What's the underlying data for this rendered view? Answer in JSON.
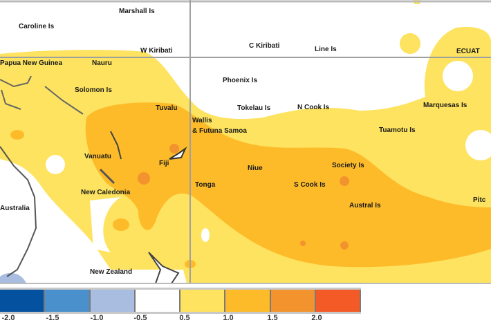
{
  "colors": {
    "background": "#ffffff",
    "yellow_0_5_to_1_0": "#fde35f",
    "orange_1_0_to_1_5": "#fdbb2a",
    "dark_orange_1_5_to_2_0": "#f3932e",
    "red_orange_above_2_0": "#f45a25",
    "light_blue_minus_1_0_to_minus_0_5": "#a8bde0",
    "grid": "#a0a0a0"
  },
  "places": {
    "marshall": "Marshall Is",
    "caroline": "Caroline Is",
    "png": "Papua New Guinea",
    "nauru": "Nauru",
    "w_kiribati": "W Kiribati",
    "c_kiribati": "C Kiribati",
    "line": "Line Is",
    "ecuat": "ECUAT",
    "solomon": "Solomon Is",
    "phoenix": "Phoenix Is",
    "tuvalu": "Tuvalu",
    "tokelau": "Tokelau Is",
    "n_cook": "N Cook Is",
    "marquesas": "Marquesas Is",
    "tuamotu": "Tuamotu Is",
    "wallis": "Wallis",
    "futuna_samoa": "& Futuna Samoa",
    "vanuatu": "Vanuatu",
    "fiji": "Fiji",
    "new_caledonia": "New Caledonia",
    "tonga": "Tonga",
    "niue": "Niue",
    "society": "Society Is",
    "s_cook": "S Cook Is",
    "austral": "Austral Is",
    "pitcairn": "Pitc",
    "australia": "Australia",
    "new_zealand": "New Zealand"
  },
  "legend": {
    "colors": [
      "#0451a0",
      "#4a90cc",
      "#a8bde0",
      "#ffffff",
      "#fde35f",
      "#fdbb2a",
      "#f3932e",
      "#f45a25"
    ],
    "ticks": [
      "-2.0",
      "-1.5",
      "-1.0",
      "-0.5",
      "0.5",
      "1.0",
      "1.5",
      "2.0"
    ]
  }
}
